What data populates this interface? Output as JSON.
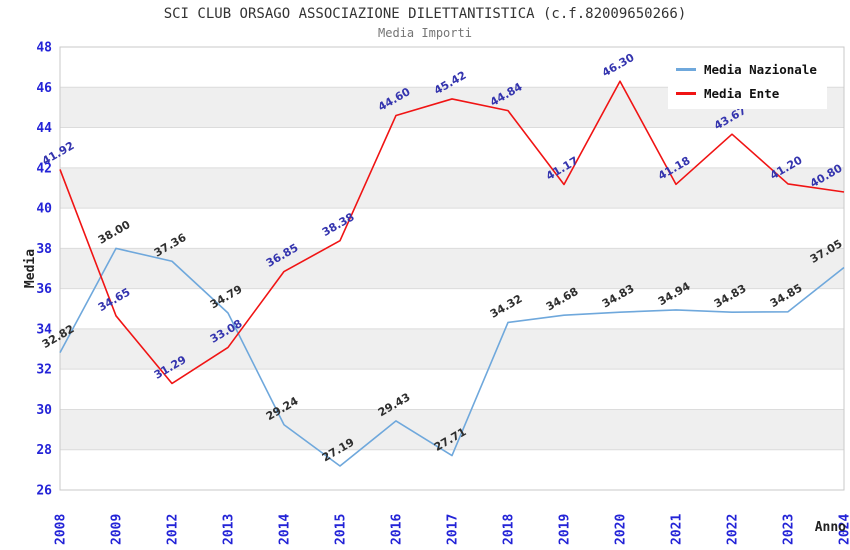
{
  "chart_data": {
    "type": "line",
    "title": "SCI CLUB ORSAGO ASSOCIAZIONE DILETTANTISTICA (c.f.82009650266)",
    "subtitle": "Media Importi",
    "xlabel": "Anno",
    "ylabel": "Media",
    "categories": [
      "2008",
      "2009",
      "2012",
      "2013",
      "2014",
      "2015",
      "2016",
      "2017",
      "2018",
      "2019",
      "2020",
      "2021",
      "2022",
      "2023",
      "2024"
    ],
    "series": [
      {
        "name": "Media Nazionale",
        "color": "#6fa8dc",
        "label_color": "#2e2e2e",
        "values": [
          32.82,
          38.0,
          37.36,
          34.79,
          29.24,
          27.19,
          29.43,
          27.71,
          34.32,
          34.68,
          34.83,
          34.94,
          34.83,
          34.85,
          37.05
        ]
      },
      {
        "name": "Media Ente",
        "color": "#f01414",
        "label_color": "#3434ae",
        "values": [
          41.92,
          34.65,
          31.29,
          33.08,
          36.85,
          38.38,
          44.6,
          45.42,
          44.84,
          41.17,
          46.3,
          41.18,
          43.67,
          41.2,
          40.8
        ]
      }
    ],
    "ylim": [
      26,
      48
    ],
    "ytick_step": 2,
    "grid": true,
    "band_color": "#efefef",
    "gridline_color": "#dcdcdc",
    "border_color": "#c9c9c9",
    "tick_color": "#2323d7",
    "legend_position": "top-right"
  }
}
